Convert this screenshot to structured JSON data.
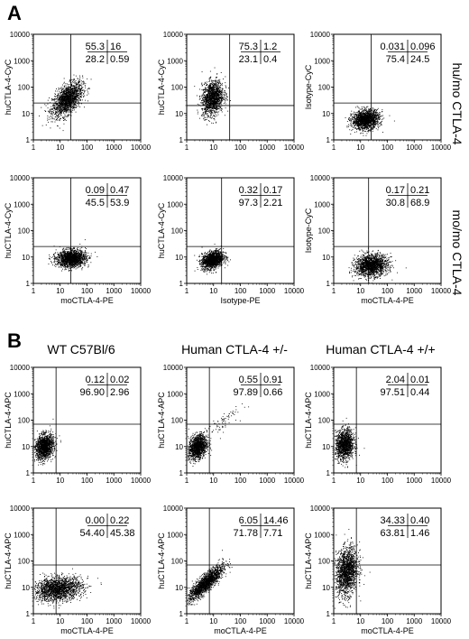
{
  "panels": {
    "A": {
      "letter": "A",
      "row_labels": [
        "hu/mo CTLA-4",
        "mo/mo CTLA-4"
      ]
    },
    "B": {
      "letter": "B",
      "column_titles": [
        "WT C57Bl/6",
        "Human CTLA-4 +/-",
        "Human CTLA-4 +/+"
      ]
    }
  },
  "chart_data": [
    {
      "type": "scatter",
      "panel": "A",
      "row": 0,
      "col": 0,
      "xlabel": "",
      "ylabel": "huCTLA-4-CyC",
      "xlim": [
        1,
        10000
      ],
      "ylim": [
        1,
        10000
      ],
      "scale": "log",
      "xticks": [
        "1",
        "10",
        "100",
        "1000",
        "10000"
      ],
      "yticks": [
        "1",
        "10",
        "100",
        "1000",
        "10000"
      ],
      "gate": {
        "x": 25,
        "y": 25
      },
      "quadrants": {
        "ul": "55.3",
        "ur": "16",
        "ll": "28.2",
        "lr": "0.59"
      },
      "clusters": [
        {
          "x": 18,
          "y": 35,
          "sx": 0.28,
          "sy": 0.32,
          "n": 1700,
          "rho": 0.55
        }
      ]
    },
    {
      "type": "scatter",
      "panel": "A",
      "row": 0,
      "col": 1,
      "xlabel": "",
      "ylabel": "huCTLA-4-CyC",
      "xlim": [
        1,
        10000
      ],
      "ylim": [
        1,
        10000
      ],
      "scale": "log",
      "xticks": [
        "1",
        "10",
        "100",
        "1000",
        "10000"
      ],
      "yticks": [
        "1",
        "10",
        "100",
        "1000",
        "10000"
      ],
      "gate": {
        "x": 40,
        "y": 20
      },
      "quadrants": {
        "ul": "75.3",
        "ur": "1.2",
        "ll": "23.1",
        "lr": "0.4"
      },
      "clusters": [
        {
          "x": 9,
          "y": 40,
          "sx": 0.2,
          "sy": 0.32,
          "n": 1500,
          "rho": 0.2
        }
      ]
    },
    {
      "type": "scatter",
      "panel": "A",
      "row": 0,
      "col": 2,
      "xlabel": "",
      "ylabel": "Isotype-CyC",
      "xlim": [
        1,
        10000
      ],
      "ylim": [
        1,
        10000
      ],
      "scale": "log",
      "xticks": [
        "1",
        "10",
        "100",
        "1000",
        "10000"
      ],
      "yticks": [
        "1",
        "10",
        "100",
        "1000",
        "10000"
      ],
      "gate": {
        "x": 25,
        "y": 25
      },
      "quadrants": {
        "ul": "0.031",
        "ur": "0.096",
        "ll": "75.4",
        "lr": "24.5"
      },
      "clusters": [
        {
          "x": 15,
          "y": 6,
          "sx": 0.25,
          "sy": 0.18,
          "n": 1600,
          "rho": 0.15
        }
      ]
    },
    {
      "type": "scatter",
      "panel": "A",
      "row": 1,
      "col": 0,
      "xlabel": "moCTLA-4-PE",
      "ylabel": "huCTLA-4-CyC",
      "xlim": [
        1,
        10000
      ],
      "ylim": [
        1,
        10000
      ],
      "scale": "log",
      "xticks": [
        "1",
        "10",
        "100",
        "1000",
        "10000"
      ],
      "yticks": [
        "1",
        "10",
        "100",
        "1000",
        "10000"
      ],
      "gate": {
        "x": 25,
        "y": 25
      },
      "quadrants": {
        "ul": "0.09",
        "ur": "0.47",
        "ll": "45.5",
        "lr": "53.9"
      },
      "clusters": [
        {
          "x": 25,
          "y": 9,
          "sx": 0.27,
          "sy": 0.16,
          "n": 1700,
          "rho": 0.1
        }
      ]
    },
    {
      "type": "scatter",
      "panel": "A",
      "row": 1,
      "col": 1,
      "xlabel": "Isotype-PE",
      "ylabel": "huCTLA-4-CyC",
      "xlim": [
        1,
        10000
      ],
      "ylim": [
        1,
        10000
      ],
      "scale": "log",
      "xticks": [
        "1",
        "10",
        "100",
        "1000",
        "10000"
      ],
      "yticks": [
        "1",
        "10",
        "100",
        "1000",
        "10000"
      ],
      "gate": {
        "x": 20,
        "y": 25
      },
      "quadrants": {
        "ul": "0.32",
        "ur": "0.17",
        "ll": "97.3",
        "lr": "2.21"
      },
      "clusters": [
        {
          "x": 9,
          "y": 8,
          "sx": 0.2,
          "sy": 0.17,
          "n": 1500,
          "rho": 0.3
        }
      ]
    },
    {
      "type": "scatter",
      "panel": "A",
      "row": 1,
      "col": 2,
      "xlabel": "moCTLA-4-PE",
      "ylabel": "Isotype-CyC",
      "xlim": [
        1,
        10000
      ],
      "ylim": [
        1,
        10000
      ],
      "scale": "log",
      "xticks": [
        "1",
        "10",
        "100",
        "1000",
        "10000"
      ],
      "yticks": [
        "1",
        "10",
        "100",
        "1000",
        "10000"
      ],
      "gate": {
        "x": 20,
        "y": 25
      },
      "quadrants": {
        "ul": "0.17",
        "ur": "0.21",
        "ll": "30.8",
        "lr": "68.9"
      },
      "clusters": [
        {
          "x": 25,
          "y": 5,
          "sx": 0.3,
          "sy": 0.2,
          "n": 1700,
          "rho": 0.1
        }
      ]
    },
    {
      "type": "scatter",
      "panel": "B",
      "row": 0,
      "col": 0,
      "xlabel": "",
      "ylabel": "huCTLA-4-APC",
      "xlim": [
        1,
        10000
      ],
      "ylim": [
        1,
        10000
      ],
      "scale": "log",
      "xticks": [
        "1",
        "10",
        "100",
        "1000",
        "10000"
      ],
      "yticks": [
        "1",
        "10",
        "100",
        "1000",
        "10000"
      ],
      "gate": {
        "x": 7,
        "y": 70
      },
      "quadrants": {
        "ul": "0.12",
        "ur": "0.02",
        "ll": "96.90",
        "lr": "2.96"
      },
      "clusters": [
        {
          "x": 2.5,
          "y": 10,
          "sx": 0.17,
          "sy": 0.23,
          "n": 1500,
          "rho": 0.2
        }
      ]
    },
    {
      "type": "scatter",
      "panel": "B",
      "row": 0,
      "col": 1,
      "xlabel": "",
      "ylabel": "huCTLA-4-APC",
      "xlim": [
        1,
        10000
      ],
      "ylim": [
        1,
        10000
      ],
      "scale": "log",
      "xticks": [
        "1",
        "10",
        "100",
        "1000",
        "10000"
      ],
      "yticks": [
        "1",
        "10",
        "100",
        "1000",
        "10000"
      ],
      "gate": {
        "x": 7,
        "y": 70
      },
      "quadrants": {
        "ul": "0.55",
        "ur": "0.91",
        "ll": "97.89",
        "lr": "0.66"
      },
      "clusters": [
        {
          "x": 2.5,
          "y": 10,
          "sx": 0.17,
          "sy": 0.23,
          "n": 1400,
          "rho": 0.25
        },
        {
          "x": 20,
          "y": 80,
          "sx": 0.3,
          "sy": 0.3,
          "n": 70,
          "rho": 0.8
        }
      ]
    },
    {
      "type": "scatter",
      "panel": "B",
      "row": 0,
      "col": 2,
      "xlabel": "",
      "ylabel": "huCTLA-4-APC",
      "xlim": [
        1,
        10000
      ],
      "ylim": [
        1,
        10000
      ],
      "scale": "log",
      "xticks": [
        "1",
        "10",
        "100",
        "1000",
        "10000"
      ],
      "yticks": [
        "1",
        "10",
        "100",
        "1000",
        "10000"
      ],
      "gate": {
        "x": 7,
        "y": 70
      },
      "quadrants": {
        "ul": "2.04",
        "ur": "0.01",
        "ll": "97.51",
        "lr": "0.44"
      },
      "clusters": [
        {
          "x": 2.5,
          "y": 12,
          "sx": 0.17,
          "sy": 0.28,
          "n": 1400,
          "rho": 0.1
        }
      ]
    },
    {
      "type": "scatter",
      "panel": "B",
      "row": 1,
      "col": 0,
      "xlabel": "moCTLA-4-PE",
      "ylabel": "huCTLA-4-APC",
      "xlim": [
        1,
        10000
      ],
      "ylim": [
        1,
        10000
      ],
      "scale": "log",
      "xticks": [
        "1",
        "10",
        "100",
        "1000",
        "10000"
      ],
      "yticks": [
        "1",
        "10",
        "100",
        "1000",
        "10000"
      ],
      "gate": {
        "x": 7,
        "y": 70
      },
      "quadrants": {
        "ul": "0.00",
        "ur": "0.22",
        "ll": "54.40",
        "lr": "45.38"
      },
      "clusters": [
        {
          "x": 8,
          "y": 9,
          "sx": 0.45,
          "sy": 0.22,
          "n": 1900,
          "rho": 0.2
        }
      ]
    },
    {
      "type": "scatter",
      "panel": "B",
      "row": 1,
      "col": 1,
      "xlabel": "moCTLA-4-PE",
      "ylabel": "huCTLA-4-APC",
      "xlim": [
        1,
        10000
      ],
      "ylim": [
        1,
        10000
      ],
      "scale": "log",
      "xticks": [
        "1",
        "10",
        "100",
        "1000",
        "10000"
      ],
      "yticks": [
        "1",
        "10",
        "100",
        "1000",
        "10000"
      ],
      "gate": {
        "x": 7,
        "y": 70
      },
      "quadrants": {
        "ul": "6.05",
        "ur": "14.46",
        "ll": "71.78",
        "lr": "7.71"
      },
      "clusters": [
        {
          "x": 5,
          "y": 15,
          "sx": 0.32,
          "sy": 0.32,
          "n": 1800,
          "rho": 0.85
        }
      ]
    },
    {
      "type": "scatter",
      "panel": "B",
      "row": 1,
      "col": 2,
      "xlabel": "moCTLA-4-PE",
      "ylabel": "huCTLA-4-APC",
      "xlim": [
        1,
        10000
      ],
      "ylim": [
        1,
        10000
      ],
      "scale": "log",
      "xticks": [
        "1",
        "10",
        "100",
        "1000",
        "10000"
      ],
      "yticks": [
        "1",
        "10",
        "100",
        "1000",
        "10000"
      ],
      "gate": {
        "x": 7,
        "y": 70
      },
      "quadrants": {
        "ul": "34.33",
        "ur": "0.40",
        "ll": "63.81",
        "lr": "1.46"
      },
      "clusters": [
        {
          "x": 3,
          "y": 40,
          "sx": 0.2,
          "sy": 0.45,
          "n": 1700,
          "rho": 0.2
        }
      ]
    }
  ]
}
